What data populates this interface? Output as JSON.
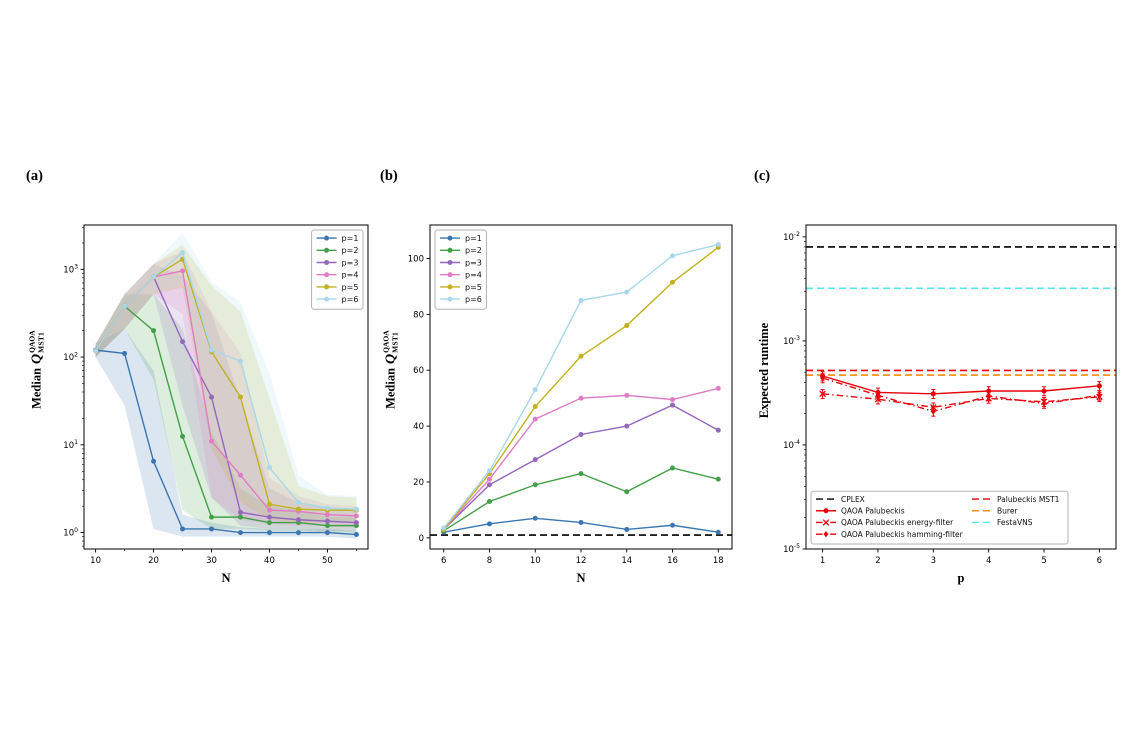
{
  "figure": {
    "background": "#ffffff"
  },
  "chart_data": [
    {
      "id": "a",
      "type": "line",
      "panel_label": "(a)",
      "xlabel": "N",
      "ylabel": {
        "prefix": "Median",
        "symbol": "Q",
        "sup": "QAOA",
        "sub": "MST1"
      },
      "x": [
        10,
        15,
        20,
        25,
        30,
        35,
        40,
        45,
        50,
        55
      ],
      "xaxis": {
        "type": "linear",
        "min": 8,
        "max": 57,
        "ticks": [
          10,
          20,
          30,
          40,
          50
        ],
        "minor": [
          15,
          25,
          35,
          45,
          55
        ]
      },
      "yaxis": {
        "type": "log",
        "min": 0.65,
        "max": 3200,
        "ticks": [
          1,
          10,
          100,
          1000
        ]
      },
      "legend": {
        "position": "top-right",
        "ncol": 1,
        "fontsize": 8
      },
      "series": [
        {
          "name": "p=1",
          "color": "#3b76b0",
          "marker": "o",
          "dash": "solid",
          "values": [
            120,
            110,
            6.5,
            1.1,
            1.1,
            1.0,
            1.0,
            1.0,
            1.0,
            0.95
          ],
          "band": {
            "lower": [
              100,
              28,
              1.1,
              0.9,
              0.9,
              0.9,
              0.9,
              0.9,
              0.9,
              0.85
            ],
            "upper": [
              145,
              210,
              70,
              1.6,
              1.3,
              1.15,
              1.1,
              1.1,
              1.1,
              1.05
            ]
          }
        },
        {
          "name": "p=2",
          "color": "#44a046",
          "marker": "o",
          "dash": "solid",
          "values": [
            118,
            380,
            200,
            12.5,
            1.5,
            1.5,
            1.3,
            1.3,
            1.2,
            1.2
          ],
          "band": {
            "lower": [
              100,
              210,
              55,
              1.8,
              1.1,
              1.1,
              1.05,
              1.05,
              1.0,
              1.0
            ],
            "upper": [
              140,
              520,
              520,
              210,
              14,
              3.2,
              2.0,
              1.8,
              1.5,
              1.5
            ]
          }
        },
        {
          "name": "p=3",
          "color": "#9467bd",
          "marker": "o",
          "dash": "solid",
          "values": [
            118,
            380,
            820,
            150,
            35,
            1.7,
            1.5,
            1.4,
            1.35,
            1.3
          ],
          "band": {
            "lower": [
              100,
              210,
              520,
              28,
              2.5,
              1.2,
              1.1,
              1.1,
              1.05,
              1.05
            ],
            "upper": [
              140,
              520,
              1150,
              850,
              320,
              32,
              3.2,
              2.2,
              1.9,
              1.8
            ]
          }
        },
        {
          "name": "p=4",
          "color": "#e07cc4",
          "marker": "o",
          "dash": "solid",
          "values": [
            118,
            380,
            820,
            960,
            11,
            4.5,
            1.8,
            1.75,
            1.6,
            1.55
          ],
          "band": {
            "lower": [
              100,
              210,
              520,
              310,
              2.5,
              1.4,
              1.25,
              1.2,
              1.2,
              1.15
            ],
            "upper": [
              140,
              520,
              1150,
              1600,
              330,
              110,
              4.2,
              2.6,
              2.1,
              2.0
            ]
          }
        },
        {
          "name": "p=5",
          "color": "#c2b120",
          "marker": "o",
          "dash": "solid",
          "values": [
            118,
            380,
            820,
            1300,
            115,
            35,
            2.1,
            1.85,
            1.8,
            1.8
          ],
          "band": {
            "lower": [
              100,
              210,
              520,
              620,
              9,
              2.2,
              1.4,
              1.3,
              1.3,
              1.3
            ],
            "upper": [
              140,
              520,
              1150,
              1900,
              650,
              330,
              34,
              3.4,
              2.6,
              2.5
            ]
          }
        },
        {
          "name": "p=6",
          "color": "#a8d8ea",
          "marker": "o",
          "dash": "solid",
          "values": [
            118,
            380,
            820,
            1550,
            120,
            90,
            5.5,
            2.2,
            1.9,
            1.85
          ],
          "band": {
            "lower": [
              100,
              210,
              520,
              700,
              13,
              3.0,
              1.5,
              1.4,
              1.35,
              1.3
            ],
            "upper": [
              140,
              520,
              1150,
              2600,
              720,
              420,
              65,
              4.5,
              2.7,
              2.6
            ]
          }
        }
      ]
    },
    {
      "id": "b",
      "type": "line",
      "panel_label": "(b)",
      "xlabel": "N",
      "ylabel": {
        "prefix": "Median",
        "symbol": "Q",
        "sup": "QAOA",
        "sub": "MST1"
      },
      "x": [
        6,
        8,
        10,
        12,
        14,
        16,
        18
      ],
      "xaxis": {
        "type": "linear",
        "min": 5.4,
        "max": 18.6,
        "ticks": [
          6,
          8,
          10,
          12,
          14,
          16,
          18
        ]
      },
      "yaxis": {
        "type": "linear",
        "min": -4,
        "max": 112,
        "ticks": [
          0,
          20,
          40,
          60,
          80,
          100
        ]
      },
      "legend": {
        "position": "top-left",
        "ncol": 1,
        "fontsize": 8
      },
      "hlines": [
        {
          "label": "baseline",
          "y": 1,
          "color": "#000000",
          "dash": "dashed"
        }
      ],
      "series": [
        {
          "name": "p=1",
          "color": "#3b76b0",
          "marker": "o",
          "dash": "solid",
          "values": [
            2,
            5,
            7,
            5.5,
            3,
            4.5,
            2
          ]
        },
        {
          "name": "p=2",
          "color": "#44a046",
          "marker": "o",
          "dash": "solid",
          "values": [
            2.5,
            13,
            19,
            23,
            16.5,
            25,
            21
          ]
        },
        {
          "name": "p=3",
          "color": "#9467bd",
          "marker": "o",
          "dash": "solid",
          "values": [
            3,
            19,
            28,
            37,
            40,
            47.5,
            38.5
          ]
        },
        {
          "name": "p=4",
          "color": "#e07cc4",
          "marker": "o",
          "dash": "solid",
          "values": [
            3,
            21,
            42.5,
            50,
            51,
            49.5,
            53.5
          ]
        },
        {
          "name": "p=5",
          "color": "#c2b120",
          "marker": "o",
          "dash": "solid",
          "values": [
            3,
            23,
            47,
            65,
            76,
            91.5,
            104
          ]
        },
        {
          "name": "p=6",
          "color": "#a8d8ea",
          "marker": "o",
          "dash": "solid",
          "values": [
            3.5,
            24,
            53,
            85,
            88,
            101,
            105
          ]
        }
      ]
    },
    {
      "id": "c",
      "type": "line",
      "panel_label": "(c)",
      "xlabel": "p",
      "ylabel": {
        "text": "Expected runtime"
      },
      "x": [
        1,
        2,
        3,
        4,
        5,
        6
      ],
      "xaxis": {
        "type": "linear",
        "min": 0.7,
        "max": 6.3,
        "ticks": [
          1,
          2,
          3,
          4,
          5,
          6
        ]
      },
      "yaxis": {
        "type": "log",
        "min": 1e-05,
        "max": 0.013,
        "ticks": [
          0.01,
          0.001,
          0.0001,
          1e-05
        ]
      },
      "legend": {
        "position": "bottom",
        "ncol": 2,
        "fontsize": 7.5,
        "entries": [
          {
            "label": "CPLEX",
            "color": "#000000",
            "dash": "dashed"
          },
          {
            "label": "QAOA Palubeckis",
            "color": "#e8000b",
            "dash": "solid",
            "marker": "o"
          },
          {
            "label": "QAOA Palubeckis energy-filter",
            "color": "#e8000b",
            "dash": "dashdot",
            "marker": "x"
          },
          {
            "label": "QAOA Palubeckis hamming-filter",
            "color": "#e8000b",
            "dash": "dashdot",
            "marker": "D"
          },
          {
            "label": "Palubeckis MST1",
            "color": "#e8000b",
            "dash": "dashed"
          },
          {
            "label": "Burer",
            "color": "#ff8c05",
            "dash": "dashed"
          },
          {
            "label": "FestaVNS",
            "color": "#55e6e6",
            "dash": "dashed"
          }
        ]
      },
      "hlines": [
        {
          "label": "CPLEX",
          "y": 0.008,
          "color": "#000000",
          "dash": "dashed"
        },
        {
          "label": "FestaVNS",
          "y": 0.0032,
          "color": "#55e6e6",
          "dash": "dashed"
        },
        {
          "label": "Palubeckis MST1",
          "y": 0.00052,
          "color": "#e8000b",
          "dash": "dashed"
        },
        {
          "label": "Burer",
          "y": 0.00047,
          "color": "#ff8c05",
          "dash": "dashed"
        }
      ],
      "series": [
        {
          "name": "QAOA Palubeckis",
          "color": "#e8000b",
          "marker": "o",
          "dash": "solid",
          "err_frac": 0.1,
          "values": [
            0.00046,
            0.00032,
            0.00031,
            0.00033,
            0.00033,
            0.00037
          ]
        },
        {
          "name": "QAOA Palubeckis energy-filter",
          "color": "#e8000b",
          "marker": "x",
          "dash": "dashdot",
          "err_frac": 0.1,
          "values": [
            0.00031,
            0.000275,
            0.00023,
            0.00028,
            0.00026,
            0.00029
          ]
        },
        {
          "name": "QAOA Palubeckis hamming-filter",
          "color": "#e8000b",
          "marker": "D",
          "dash": "dashdot",
          "err_frac": 0.1,
          "values": [
            0.00044,
            0.0003,
            0.00021,
            0.000295,
            0.00025,
            0.0003
          ]
        }
      ]
    }
  ]
}
